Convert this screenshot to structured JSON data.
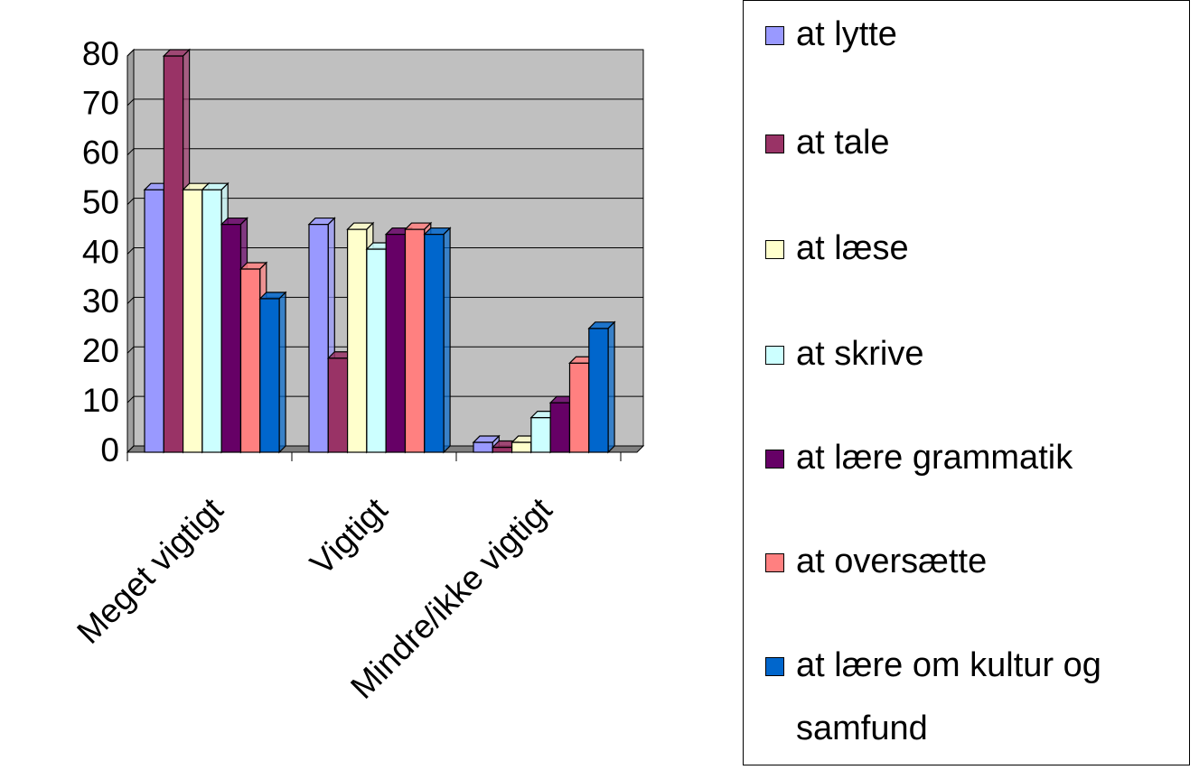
{
  "chart_data": {
    "type": "bar3d",
    "categories": [
      "Meget vigtigt",
      "Vigtigt",
      "Mindre/ikke vigtigt"
    ],
    "series": [
      {
        "name": "at lytte",
        "color": "#9999ff",
        "values": [
          53,
          46,
          2
        ]
      },
      {
        "name": "at tale",
        "color": "#993366",
        "values": [
          80,
          19,
          1
        ]
      },
      {
        "name": "at læse",
        "color": "#ffffcc",
        "values": [
          53,
          45,
          2
        ]
      },
      {
        "name": "at skrive",
        "color": "#ccffff",
        "values": [
          53,
          41,
          7
        ]
      },
      {
        "name": "at lære grammatik",
        "color": "#660066",
        "values": [
          46,
          44,
          10
        ]
      },
      {
        "name": "at oversætte",
        "color": "#ff8080",
        "values": [
          37,
          45,
          18
        ]
      },
      {
        "name": "at lære om kultur og samfund",
        "color": "#0066cc",
        "values": [
          31,
          44,
          25
        ]
      }
    ],
    "ylim": [
      0,
      80
    ],
    "yticks": [
      0,
      10,
      20,
      30,
      40,
      50,
      60,
      70,
      80
    ],
    "grid": true,
    "legend": "right"
  }
}
